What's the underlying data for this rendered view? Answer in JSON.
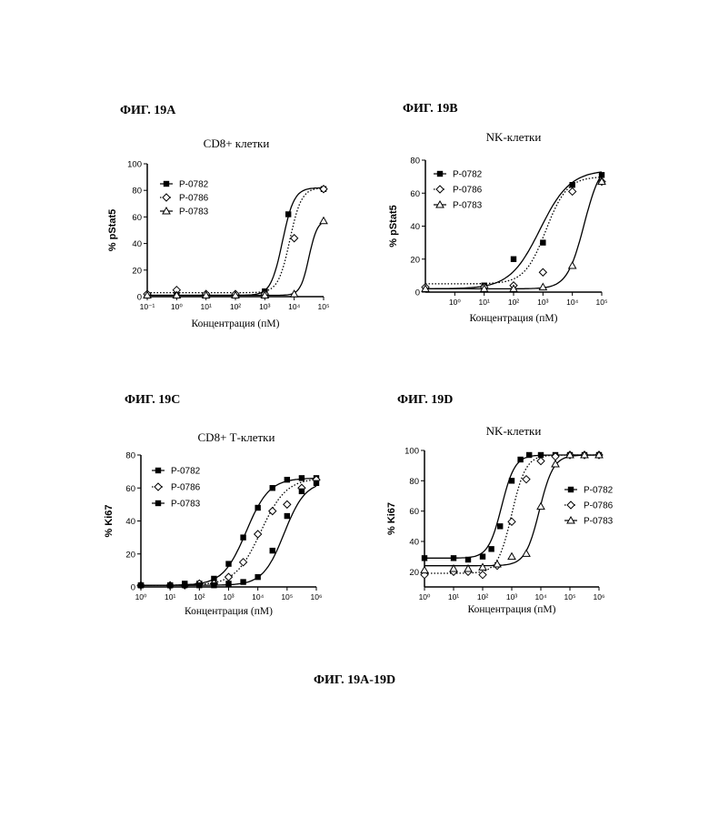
{
  "caption": "ФИГ. 19А-19D",
  "panels": [
    {
      "label": "ФИГ. 19А",
      "title": "CD8+ клетки"
    },
    {
      "label": "ФИГ. 19В",
      "title": "NK-клетки"
    },
    {
      "label": "ФИГ. 19С",
      "title": "CD8+ Т-клетки"
    },
    {
      "label": "ФИГ. 19D",
      "title": "NK-клетки"
    }
  ],
  "chart_data": [
    {
      "type": "scatter",
      "title": "CD8+ клетки",
      "xlabel": "Концентрация (пМ)",
      "ylabel": "% pStat5",
      "x_scale": "log",
      "xlim_exp": [
        -1,
        5
      ],
      "x_tick_labels": [
        "10⁻¹",
        "10⁰",
        "10¹",
        "10²",
        "10³",
        "10⁴",
        "10⁵"
      ],
      "ylim": [
        0,
        100
      ],
      "y_ticks": [
        0,
        20,
        40,
        60,
        80,
        100
      ],
      "legend_position": "top-left",
      "series": [
        {
          "name": "P-0782",
          "marker": "square",
          "line": "solid",
          "x_exp": [
            -1,
            0,
            1,
            2,
            3,
            3.8,
            5
          ],
          "y": [
            1,
            1,
            1,
            1,
            4,
            62,
            81
          ],
          "fit": {
            "bottom": 1,
            "top": 82,
            "log_ec50": 3.6,
            "hill": 2.2
          }
        },
        {
          "name": "P-0786",
          "marker": "diamond",
          "line": "dotted",
          "x_exp": [
            -1,
            0,
            1,
            2,
            3,
            4,
            5
          ],
          "y": [
            2,
            5,
            2,
            2,
            2,
            44,
            81
          ],
          "fit": {
            "bottom": 3,
            "top": 82,
            "log_ec50": 3.85,
            "hill": 2.2
          }
        },
        {
          "name": "P-0783",
          "marker": "triangle",
          "line": "solid",
          "x_exp": [
            -1,
            0,
            1,
            2,
            3,
            4,
            5
          ],
          "y": [
            1,
            1,
            1,
            1,
            1,
            2,
            57
          ],
          "fit": {
            "bottom": 1,
            "top": 58,
            "log_ec50": 4.5,
            "hill": 3
          }
        }
      ]
    },
    {
      "type": "scatter",
      "title": "NK-клетки",
      "xlabel": "Концентрация (пМ)",
      "ylabel": "% pStat5",
      "x_scale": "log",
      "xlim_exp": [
        -1,
        5
      ],
      "x_tick_labels": [
        "10⁰",
        "10¹",
        "10²",
        "10³",
        "10⁴",
        "10⁵"
      ],
      "ylim": [
        0,
        80
      ],
      "y_ticks": [
        0,
        20,
        40,
        60,
        80
      ],
      "legend_position": "top-left",
      "series": [
        {
          "name": "P-0782",
          "marker": "square",
          "line": "solid",
          "x_exp": [
            -1,
            1,
            2,
            3,
            4,
            5
          ],
          "y": [
            2,
            4,
            20,
            30,
            65,
            71
          ],
          "fit": {
            "bottom": 2,
            "top": 74,
            "log_ec50": 2.9,
            "hill": 0.85
          }
        },
        {
          "name": "P-0786",
          "marker": "diamond",
          "line": "dotted",
          "x_exp": [
            -1,
            1,
            2,
            3,
            4,
            5
          ],
          "y": [
            3,
            3,
            4,
            12,
            61,
            67
          ],
          "fit": {
            "bottom": 5,
            "top": 70,
            "log_ec50": 3.1,
            "hill": 1.2
          }
        },
        {
          "name": "P-0783",
          "marker": "triangle",
          "line": "solid",
          "x_exp": [
            -1,
            1,
            2,
            3,
            4,
            5
          ],
          "y": [
            2,
            2,
            2,
            3,
            16,
            67
          ],
          "fit": {
            "bottom": 2,
            "top": 80,
            "log_ec50": 4.4,
            "hill": 1.5
          }
        }
      ]
    },
    {
      "type": "scatter",
      "title": "CD8+ Т-клетки",
      "xlabel": "Концентрация (пМ)",
      "ylabel": "% Ki67",
      "x_scale": "log",
      "xlim_exp": [
        0,
        6
      ],
      "x_tick_labels": [
        "10⁰",
        "10¹",
        "10²",
        "10³",
        "10⁴",
        "10⁵",
        "10⁶"
      ],
      "ylim": [
        0,
        80
      ],
      "y_ticks": [
        0,
        20,
        40,
        60,
        80
      ],
      "legend_position": "top-left",
      "series": [
        {
          "name": "P-0782",
          "marker": "square",
          "line": "solid",
          "x_exp": [
            0,
            1,
            1.5,
            2,
            2.5,
            3,
            3.5,
            4,
            4.5,
            5,
            5.5,
            6
          ],
          "y": [
            1,
            1,
            2,
            2,
            5,
            14,
            30,
            48,
            60,
            65,
            66,
            66
          ],
          "fit": {
            "bottom": 1,
            "top": 66,
            "log_ec50": 3.6,
            "hill": 1.1
          }
        },
        {
          "name": "P-0786",
          "marker": "diamond",
          "line": "dotted",
          "x_exp": [
            0,
            1,
            1.5,
            2,
            2.5,
            3,
            3.5,
            4,
            4.5,
            5,
            5.5,
            6
          ],
          "y": [
            1,
            1,
            1,
            2,
            2,
            6,
            15,
            32,
            46,
            50,
            60,
            65
          ],
          "fit": {
            "bottom": 1,
            "top": 66,
            "log_ec50": 4.1,
            "hill": 1.0
          }
        },
        {
          "name": "P-0783",
          "marker": "square",
          "line": "solid",
          "x_exp": [
            0,
            1,
            1.5,
            2,
            2.5,
            3,
            3.5,
            4,
            4.5,
            5,
            5.5,
            6
          ],
          "y": [
            1,
            1,
            1,
            1,
            1,
            2,
            3,
            6,
            22,
            43,
            58,
            63
          ],
          "fit": {
            "bottom": 1,
            "top": 64,
            "log_ec50": 4.9,
            "hill": 1.2
          }
        }
      ]
    },
    {
      "type": "scatter",
      "title": "NK-клетки",
      "xlabel": "Концентрация (пМ)",
      "ylabel": "% Ki67",
      "x_scale": "log",
      "xlim_exp": [
        0,
        6
      ],
      "x_tick_labels": [
        "10⁰",
        "10¹",
        "10²",
        "10³",
        "10⁴",
        "10⁵",
        "10⁶"
      ],
      "ylim": [
        10,
        100
      ],
      "y_ticks": [
        20,
        40,
        60,
        80,
        100
      ],
      "legend_position": "right",
      "series": [
        {
          "name": "P-0782",
          "marker": "square",
          "line": "solid",
          "x_exp": [
            0,
            1,
            1.5,
            2,
            2.3,
            2.6,
            3,
            3.3,
            3.6,
            4,
            4.5,
            5,
            5.5,
            6
          ],
          "y": [
            29,
            29,
            28,
            30,
            35,
            50,
            80,
            94,
            97,
            97,
            97,
            97,
            97,
            97
          ],
          "fit": {
            "bottom": 29,
            "top": 97,
            "log_ec50": 2.65,
            "hill": 1.9
          }
        },
        {
          "name": "P-0786",
          "marker": "diamond",
          "line": "dotted",
          "x_exp": [
            0,
            1,
            1.5,
            2,
            2.5,
            3,
            3.5,
            4,
            4.5,
            5,
            5.5,
            6
          ],
          "y": [
            18,
            20,
            20,
            18,
            24,
            53,
            81,
            93,
            96,
            97,
            97,
            97
          ],
          "fit": {
            "bottom": 19,
            "top": 97,
            "log_ec50": 3.0,
            "hill": 1.8
          }
        },
        {
          "name": "P-0783",
          "marker": "triangle",
          "line": "solid",
          "x_exp": [
            0,
            1,
            1.5,
            2,
            2.5,
            3,
            3.5,
            4,
            4.5,
            5,
            5.5,
            6
          ],
          "y": [
            21,
            22,
            22,
            23,
            25,
            30,
            32,
            63,
            91,
            97,
            97,
            97
          ],
          "fit": {
            "bottom": 24,
            "top": 97,
            "log_ec50": 3.95,
            "hill": 1.8
          }
        }
      ]
    }
  ]
}
